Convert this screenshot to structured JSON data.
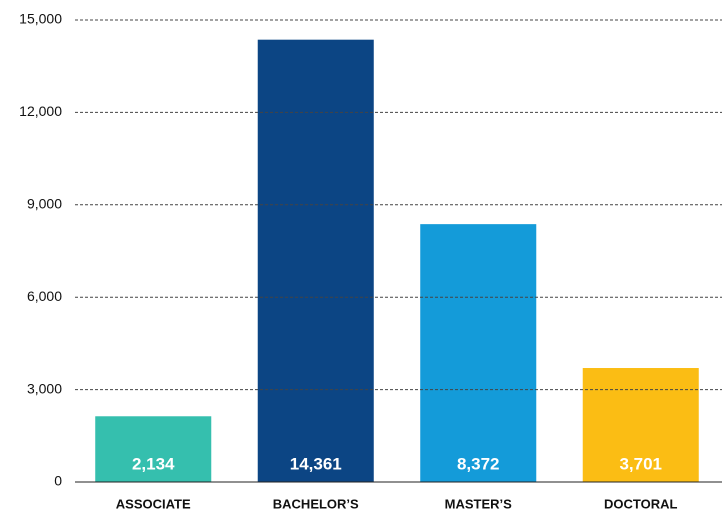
{
  "chart_data": {
    "type": "bar",
    "categories": [
      "ASSOCIATE",
      "BACHELOR’S",
      "MASTER’S",
      "DOCTORAL"
    ],
    "values": [
      2134,
      14361,
      8372,
      3701
    ],
    "value_labels": [
      "2,134",
      "14,361",
      "8,372",
      "3,701"
    ],
    "colors": [
      "#35bfae",
      "#0c4584",
      "#149bd9",
      "#fbbd14"
    ],
    "ylim": [
      0,
      15000
    ],
    "yticks": [
      0,
      {
        "value": 3000,
        "label": "3,000"
      },
      {
        "value": 6000,
        "label": "6,000"
      },
      {
        "value": 9000,
        "label": "9,000"
      },
      {
        "value": 12000,
        "label": "12,000"
      },
      {
        "value": 15000,
        "label": "15,000"
      }
    ],
    "grid": true
  }
}
